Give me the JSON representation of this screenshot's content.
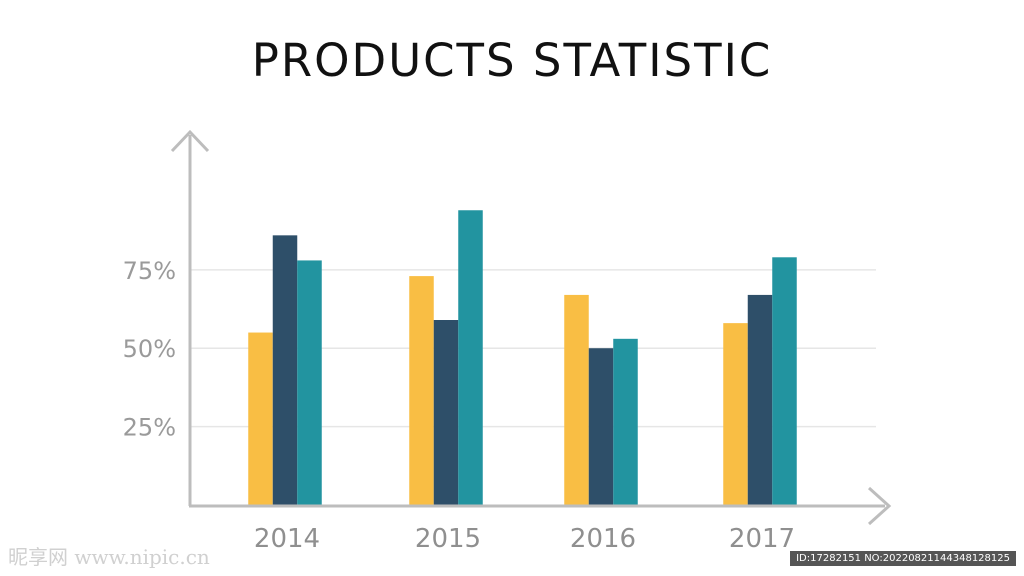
{
  "chart_data": {
    "type": "bar",
    "title": "PRODUCTS STATISTIC",
    "categories": [
      "2014",
      "2015",
      "2016",
      "2017"
    ],
    "series": [
      {
        "color": "#f9be44",
        "values": [
          55,
          73,
          67,
          58
        ]
      },
      {
        "color": "#2e4f69",
        "values": [
          86,
          59,
          50,
          67
        ]
      },
      {
        "color": "#2294a0",
        "values": [
          78,
          94,
          53,
          79
        ]
      }
    ],
    "yticks": [
      "25%",
      "50%",
      "75%"
    ],
    "ytick_values": [
      25,
      50,
      75
    ],
    "ylim": [
      0,
      118
    ],
    "grid": true,
    "axis_color": "#bdbdbd",
    "grid_color": "#e6e6e6"
  },
  "watermark": {
    "left": "昵享网 www.nipic.cn",
    "right": "ID:17282151 NO:20220821144348128125"
  }
}
